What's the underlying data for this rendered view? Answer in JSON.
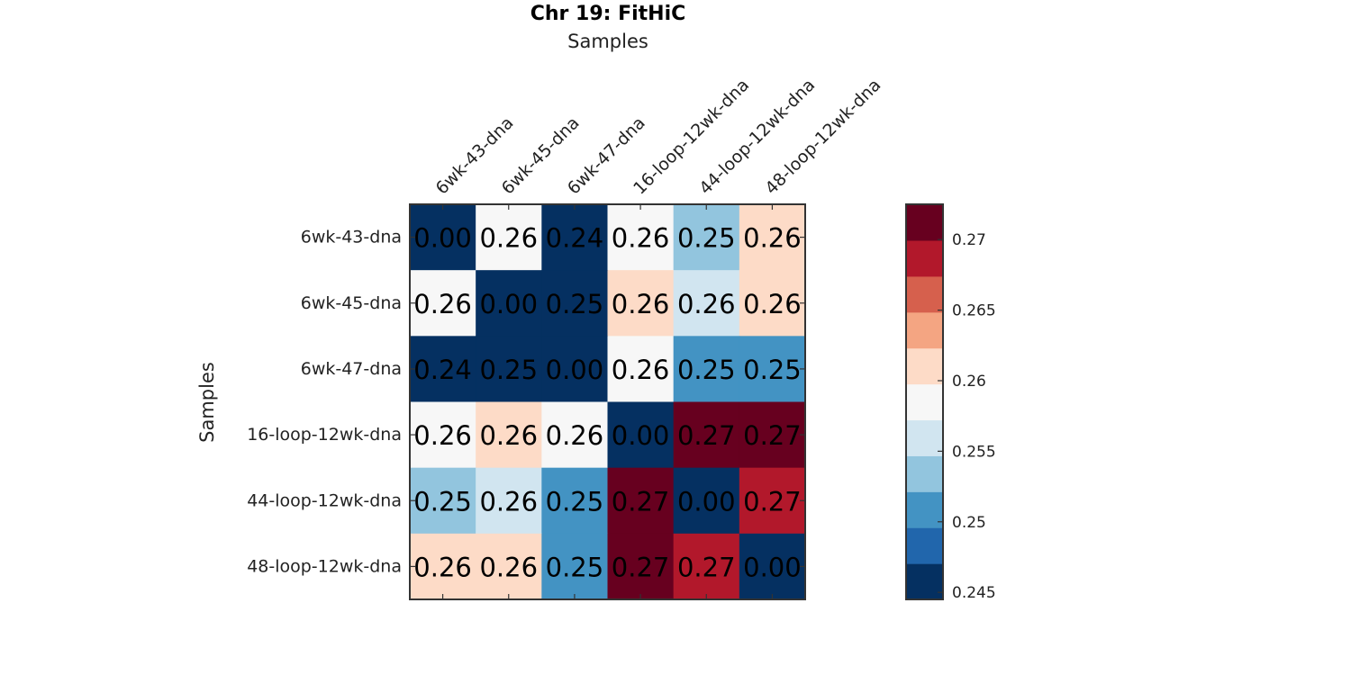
{
  "chart_data": {
    "type": "heatmap",
    "title": "Chr 19: FitHiC",
    "xlabel": "Samples",
    "ylabel": "Samples",
    "row_labels": [
      "6wk-43-dna",
      "6wk-45-dna",
      "6wk-47-dna",
      "16-loop-12wk-dna",
      "44-loop-12wk-dna",
      "48-loop-12wk-dna"
    ],
    "col_labels": [
      "6wk-43-dna",
      "6wk-45-dna",
      "6wk-47-dna",
      "16-loop-12wk-dna",
      "44-loop-12wk-dna",
      "48-loop-12wk-dna"
    ],
    "values": [
      [
        0.0,
        0.2575,
        0.24,
        0.2575,
        0.2525,
        0.26
      ],
      [
        0.2575,
        0.0,
        0.245,
        0.26,
        0.255,
        0.26
      ],
      [
        0.24,
        0.245,
        0.0,
        0.2575,
        0.25,
        0.25
      ],
      [
        0.2575,
        0.26,
        0.2575,
        0.0,
        0.2725,
        0.27
      ],
      [
        0.2525,
        0.255,
        0.25,
        0.2725,
        0.0,
        0.2675
      ],
      [
        0.26,
        0.26,
        0.25,
        0.27,
        0.2675,
        0.0
      ]
    ],
    "cell_labels": [
      [
        "0.00",
        "0.26",
        "0.24",
        "0.26",
        "0.25",
        "0.26"
      ],
      [
        "0.26",
        "0.00",
        "0.25",
        "0.26",
        "0.26",
        "0.26"
      ],
      [
        "0.24",
        "0.25",
        "0.00",
        "0.26",
        "0.25",
        "0.25"
      ],
      [
        "0.26",
        "0.26",
        "0.26",
        "0.00",
        "0.27",
        "0.27"
      ],
      [
        "0.25",
        "0.26",
        "0.25",
        "0.27",
        "0.00",
        "0.27"
      ],
      [
        "0.26",
        "0.26",
        "0.25",
        "0.27",
        "0.27",
        "0.00"
      ]
    ],
    "color_limits": [
      0.2445,
      0.2725
    ],
    "colormap": [
      "#053061",
      "#2166ac",
      "#4393c3",
      "#92c5de",
      "#d1e5f0",
      "#f7f7f7",
      "#fddbc7",
      "#f4a582",
      "#d6604d",
      "#b2182b",
      "#67001f"
    ],
    "colorbar_ticks": [
      0.245,
      0.25,
      0.255,
      0.26,
      0.265,
      0.27
    ],
    "colorbar_tick_labels": [
      "0.245",
      "0.25",
      "0.255",
      "0.26",
      "0.265",
      "0.27"
    ],
    "legend_placement": "right",
    "grid": false
  }
}
